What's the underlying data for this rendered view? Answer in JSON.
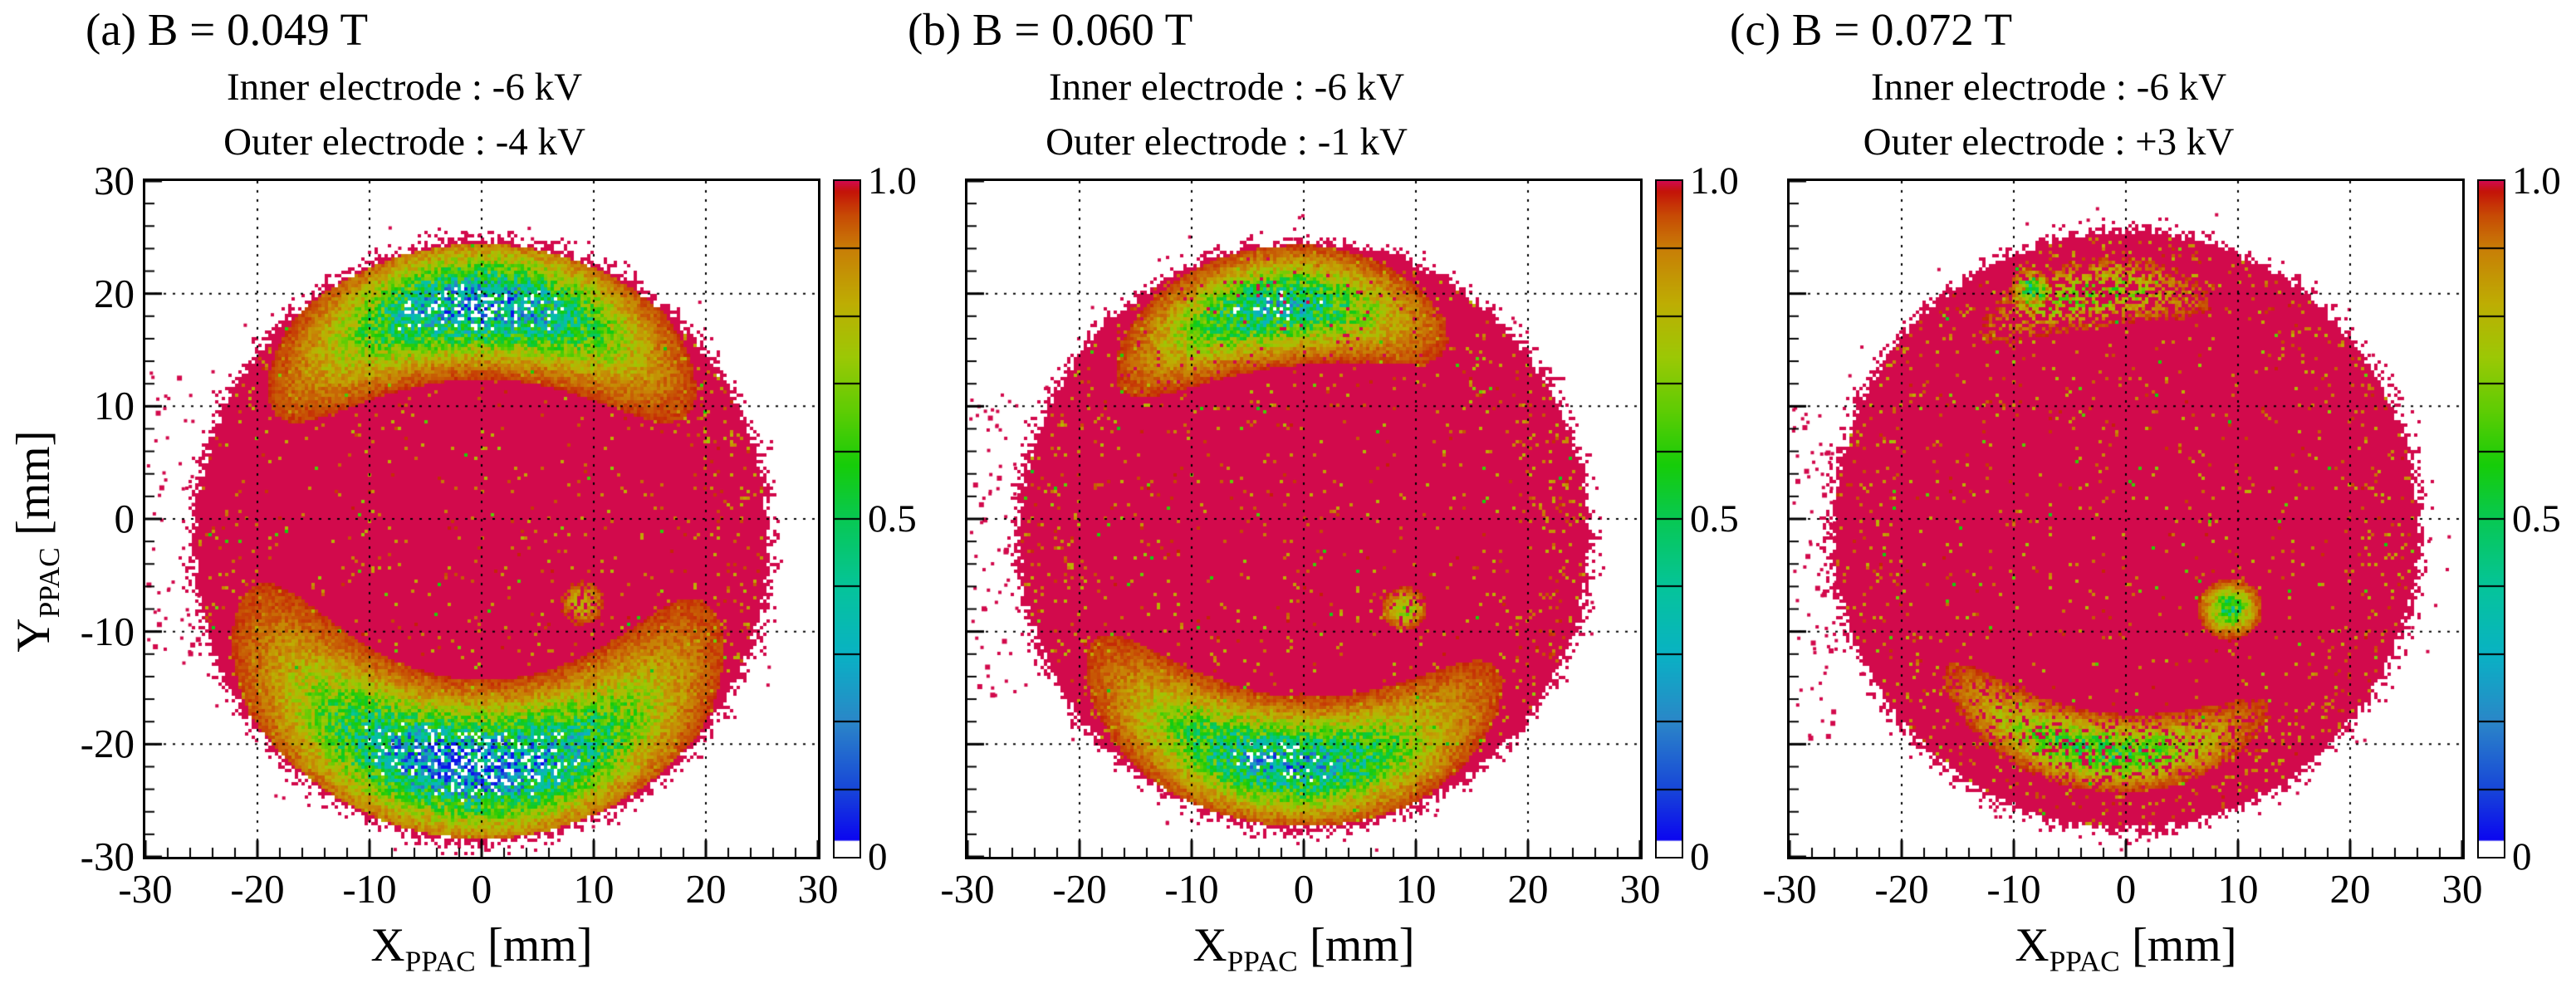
{
  "chart_data": {
    "type": "heatmap",
    "subtype": "2d-histogram-ratio-map",
    "shared_axes": {
      "xlabel_main": "X",
      "xlabel_sub": "PPAC",
      "xlabel_unit": " [mm]",
      "ylabel_main": "Y",
      "ylabel_sub": "PPAC",
      "ylabel_unit": " [mm]",
      "xlim": [
        -30,
        30
      ],
      "ylim": [
        -30,
        30
      ],
      "x_tick_labels": [
        "-30",
        "-20",
        "-10",
        "0",
        "10",
        "20",
        "30"
      ],
      "y_tick_labels": [
        "30",
        "20",
        "10",
        "0",
        "-10",
        "-20",
        "-30"
      ],
      "major_tick_step": 10,
      "minor_tick_step": 2,
      "grid": "dotted-at-major-ticks"
    },
    "colorbar": {
      "min": 0,
      "max": 1.0,
      "divisions": 10,
      "tick_labels": [
        "1.0",
        "0.5",
        "0"
      ]
    },
    "palette_stops": [
      [
        0.0,
        "#ffffff"
      ],
      [
        0.024,
        "#ffffff"
      ],
      [
        0.025,
        "#0b06f0"
      ],
      [
        0.1,
        "#1746d8"
      ],
      [
        0.2,
        "#2b86c8"
      ],
      [
        0.3,
        "#09b2c4"
      ],
      [
        0.4,
        "#05c49a"
      ],
      [
        0.5,
        "#07c853"
      ],
      [
        0.58,
        "#16cc09"
      ],
      [
        0.66,
        "#5ecc04"
      ],
      [
        0.74,
        "#9cc805"
      ],
      [
        0.82,
        "#bead03"
      ],
      [
        0.9,
        "#c87e06"
      ],
      [
        0.95,
        "#c74a05"
      ],
      [
        0.985,
        "#c41408"
      ],
      [
        1.0,
        "#d20a4c"
      ]
    ],
    "panels": [
      {
        "title": "(a) B = 0.049 T",
        "inner_electrode": "Inner electrode : -6 kV",
        "outer_electrode": "Outer electrode : -4 kV",
        "has_y_axis_labels": true,
        "distribution": {
          "disk": {
            "cx": 0,
            "cy": -2,
            "rx": 25.4,
            "ry": 26.4,
            "fuzz": 0.085,
            "value": 1.0
          },
          "bands": [
            {
              "kind": "arc",
              "name": "top-depletion",
              "r0": 21.0,
              "sr": 2.7,
              "theta0": 90,
              "stheta": 24,
              "amp": 0.8,
              "density": 1
            },
            {
              "kind": "arc",
              "name": "bottom-depletion",
              "r0": 20.0,
              "sr": 3.1,
              "theta0": -92,
              "stheta": 31,
              "amp": 0.88,
              "density": 1
            },
            {
              "kind": "blob",
              "name": "spot",
              "x": 9.0,
              "y": -7.5,
              "sx": 1.1,
              "sy": 1.1,
              "amp": 0.2,
              "density": 0.75
            }
          ],
          "outliers": [
            {
              "n": 46,
              "x": [
                -29.8,
                -25.2
              ],
              "y": [
                -13,
                13
              ]
            }
          ],
          "perimeter_outliers": {
            "n": 26,
            "r": [
              1.02,
              1.12
            ]
          }
        }
      },
      {
        "title": "(b) B = 0.060 T",
        "inner_electrode": "Inner electrode : -6 kV",
        "outer_electrode": "Outer electrode : -1 kV",
        "has_y_axis_labels": false,
        "distribution": {
          "disk": {
            "cx": 0,
            "cy": -1.5,
            "rx": 25.2,
            "ry": 25.8,
            "fuzz": 0.08,
            "value": 1.0
          },
          "bands": [
            {
              "kind": "arc",
              "name": "top-depletion",
              "r0": 20.5,
              "sr": 2.3,
              "theta0": 97,
              "stheta": 19,
              "amp": 0.62,
              "density": 0.97
            },
            {
              "kind": "arc",
              "name": "bottom-depletion",
              "r0": 20.3,
              "sr": 2.5,
              "theta0": -94,
              "stheta": 25,
              "amp": 0.7,
              "density": 1
            },
            {
              "kind": "blob",
              "name": "spot",
              "x": 9.0,
              "y": -8.0,
              "sx": 1.0,
              "sy": 1.0,
              "amp": 0.3,
              "density": 0.85
            }
          ],
          "outliers": [
            {
              "n": 60,
              "x": [
                -29.8,
                -25.5
              ],
              "y": [
                -16,
                12
              ]
            }
          ],
          "perimeter_outliers": {
            "n": 26,
            "r": [
              1.02,
              1.12
            ]
          }
        }
      },
      {
        "title": "(c) B = 0.072 T",
        "inner_electrode": "Inner electrode : -6 kV",
        "outer_electrode": "Outer electrode : +3 kV",
        "has_y_axis_labels": false,
        "distribution": {
          "disk": {
            "cx": 0,
            "cy": -1,
            "rx": 25.9,
            "ry": 26.3,
            "fuzz": 0.08,
            "value": 1.0
          },
          "bands": [
            {
              "kind": "arc",
              "name": "top-depletion",
              "r0": 21.3,
              "sr": 1.5,
              "theta0": 98,
              "stheta": 14,
              "amp": 0.34,
              "density": 0.5
            },
            {
              "kind": "blob",
              "name": "top-green-blob",
              "x": -8.5,
              "y": 20.5,
              "sx": 0.8,
              "sy": 0.8,
              "amp": 0.5,
              "density": 0.85
            },
            {
              "kind": "arc",
              "name": "bottom-depletion",
              "r0": 19.8,
              "sr": 1.6,
              "theta0": -97,
              "stheta": 21,
              "amp": 0.45,
              "density": 0.8
            },
            {
              "kind": "blob",
              "name": "spot",
              "x": 9.3,
              "y": -8.0,
              "sx": 1.3,
              "sy": 1.2,
              "amp": 0.5,
              "density": 1
            }
          ],
          "outliers": [
            {
              "n": 70,
              "x": [
                -29.8,
                -25.8
              ],
              "y": [
                -20,
                10
              ]
            }
          ],
          "perimeter_outliers": {
            "n": 30,
            "r": [
              1.02,
              1.12
            ]
          }
        }
      }
    ]
  }
}
